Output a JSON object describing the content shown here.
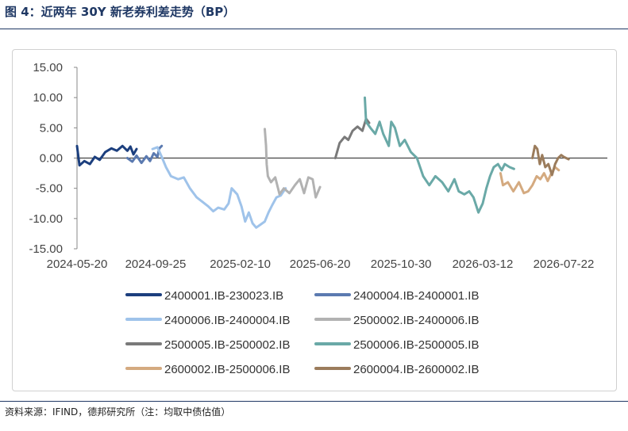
{
  "title": "图 4：近两年 30Y 新老券利差走势（BP）",
  "source": "资料来源：IFIND，德邦研究所（注：均取中债估值）",
  "chart_data": {
    "type": "line",
    "title": "",
    "xlabel": "",
    "ylabel": "",
    "ylim": [
      -15,
      15
    ],
    "y_ticks": [
      "15.00",
      "10.00",
      "5.00",
      "0.00",
      "-5.00",
      "-10.00",
      "-15.00"
    ],
    "x_ticks": [
      "2024-05-20",
      "2024-09-25",
      "2025-02-10",
      "2025-06-20",
      "2025-10-30",
      "2026-03-12",
      "2026-07-22"
    ],
    "grid": false,
    "legend_position": "bottom",
    "series": [
      {
        "name": "2400001.IB-230023.IB",
        "color": "#1c3f7e",
        "points": [
          [
            "2024-05-20",
            2.0
          ],
          [
            "2024-05-24",
            -1.2
          ],
          [
            "2024-06-01",
            -0.5
          ],
          [
            "2024-06-10",
            -1.0
          ],
          [
            "2024-06-18",
            0.2
          ],
          [
            "2024-06-26",
            -0.3
          ],
          [
            "2024-07-05",
            1.0
          ],
          [
            "2024-07-15",
            1.6
          ],
          [
            "2024-07-24",
            1.2
          ],
          [
            "2024-08-02",
            2.0
          ],
          [
            "2024-08-10",
            1.2
          ],
          [
            "2024-08-15",
            1.9
          ],
          [
            "2024-08-20",
            0.6
          ],
          [
            "2024-08-25",
            1.5
          ]
        ]
      },
      {
        "name": "2400004.IB-2400001.IB",
        "color": "#5b7ab0",
        "points": [
          [
            "2024-08-10",
            0.0
          ],
          [
            "2024-08-18",
            -0.6
          ],
          [
            "2024-08-25",
            0.4
          ],
          [
            "2024-09-02",
            -0.8
          ],
          [
            "2024-09-10",
            0.3
          ],
          [
            "2024-09-16",
            -0.5
          ],
          [
            "2024-09-22",
            0.8
          ],
          [
            "2024-09-28",
            0.2
          ],
          [
            "2024-10-01",
            1.6
          ],
          [
            "2024-10-05",
            2.0
          ]
        ]
      },
      {
        "name": "2400006.IB-2400004.IB",
        "color": "#9fc3ea",
        "points": [
          [
            "2024-09-20",
            1.5
          ],
          [
            "2024-09-28",
            1.8
          ],
          [
            "2024-10-05",
            0.2
          ],
          [
            "2024-10-12",
            -1.5
          ],
          [
            "2024-10-20",
            -3.0
          ],
          [
            "2024-11-01",
            -3.5
          ],
          [
            "2024-11-10",
            -3.2
          ],
          [
            "2024-11-20",
            -5.0
          ],
          [
            "2024-12-01",
            -6.5
          ],
          [
            "2024-12-10",
            -7.2
          ],
          [
            "2024-12-20",
            -8.0
          ],
          [
            "2024-12-28",
            -8.8
          ],
          [
            "2025-01-05",
            -8.2
          ],
          [
            "2025-01-15",
            -8.5
          ],
          [
            "2025-01-22",
            -7.5
          ],
          [
            "2025-01-27",
            -5.0
          ],
          [
            "2025-02-05",
            -6.0
          ],
          [
            "2025-02-12",
            -8.0
          ],
          [
            "2025-02-18",
            -10.5
          ],
          [
            "2025-02-24",
            -9.0
          ],
          [
            "2025-03-02",
            -10.8
          ],
          [
            "2025-03-08",
            -11.5
          ],
          [
            "2025-03-15",
            -11.0
          ],
          [
            "2025-03-22",
            -10.5
          ],
          [
            "2025-03-28",
            -9.0
          ],
          [
            "2025-04-03",
            -7.8
          ],
          [
            "2025-04-10",
            -6.5
          ],
          [
            "2025-04-17",
            -6.2
          ],
          [
            "2025-04-25",
            -5.0
          ]
        ]
      },
      {
        "name": "2500002.IB-2400006.IB",
        "color": "#b2b2b2",
        "points": [
          [
            "2025-03-22",
            4.8
          ],
          [
            "2025-03-24",
            2.0
          ],
          [
            "2025-03-25",
            -1.0
          ],
          [
            "2025-03-27",
            -3.0
          ],
          [
            "2025-04-01",
            -4.0
          ],
          [
            "2025-04-08",
            -3.2
          ],
          [
            "2025-04-15",
            -6.0
          ],
          [
            "2025-04-22",
            -5.0
          ],
          [
            "2025-05-01",
            -5.8
          ],
          [
            "2025-05-10",
            -4.5
          ],
          [
            "2025-05-18",
            -3.5
          ],
          [
            "2025-05-25",
            -5.8
          ],
          [
            "2025-06-01",
            -3.2
          ],
          [
            "2025-06-08",
            -3.5
          ],
          [
            "2025-06-13",
            -6.5
          ],
          [
            "2025-06-20",
            -4.8
          ]
        ]
      },
      {
        "name": "2500005.IB-2500002.IB",
        "color": "#7a7a7a",
        "points": [
          [
            "2025-07-15",
            0.0
          ],
          [
            "2025-07-22",
            2.5
          ],
          [
            "2025-07-30",
            3.5
          ],
          [
            "2025-08-05",
            3.0
          ],
          [
            "2025-08-12",
            4.5
          ],
          [
            "2025-08-20",
            5.2
          ],
          [
            "2025-08-28",
            4.5
          ],
          [
            "2025-09-03",
            6.5
          ],
          [
            "2025-09-08",
            5.8
          ]
        ]
      },
      {
        "name": "2500006.IB-2500005.IB",
        "color": "#6aa9a7",
        "points": [
          [
            "2025-09-01",
            10.0
          ],
          [
            "2025-09-03",
            6.0
          ],
          [
            "2025-09-10",
            5.0
          ],
          [
            "2025-09-18",
            4.0
          ],
          [
            "2025-09-25",
            6.0
          ],
          [
            "2025-10-01",
            4.0
          ],
          [
            "2025-10-10",
            2.0
          ],
          [
            "2025-10-14",
            6.0
          ],
          [
            "2025-10-20",
            5.0
          ],
          [
            "2025-10-28",
            2.0
          ],
          [
            "2025-11-05",
            3.0
          ],
          [
            "2025-11-15",
            1.0
          ],
          [
            "2025-11-25",
            0.0
          ],
          [
            "2025-12-05",
            -3.0
          ],
          [
            "2025-12-15",
            -4.5
          ],
          [
            "2025-12-25",
            -3.0
          ],
          [
            "2026-01-05",
            -4.0
          ],
          [
            "2026-01-15",
            -5.5
          ],
          [
            "2026-01-25",
            -3.5
          ],
          [
            "2026-02-01",
            -5.5
          ],
          [
            "2026-02-10",
            -6.0
          ],
          [
            "2026-02-18",
            -5.5
          ],
          [
            "2026-02-25",
            -6.5
          ],
          [
            "2026-03-05",
            -9.0
          ],
          [
            "2026-03-12",
            -7.5
          ],
          [
            "2026-03-18",
            -5.0
          ],
          [
            "2026-03-24",
            -3.0
          ],
          [
            "2026-03-30",
            -1.5
          ],
          [
            "2026-04-06",
            -1.0
          ],
          [
            "2026-04-12",
            -2.0
          ],
          [
            "2026-04-17",
            -1.0
          ],
          [
            "2026-04-25",
            -1.5
          ],
          [
            "2026-05-02",
            -1.8
          ]
        ]
      },
      {
        "name": "2600002.IB-2500006.IB",
        "color": "#d4aa80",
        "points": [
          [
            "2026-04-10",
            -2.5
          ],
          [
            "2026-04-14",
            -4.5
          ],
          [
            "2026-04-22",
            -4.0
          ],
          [
            "2026-05-01",
            -5.5
          ],
          [
            "2026-05-10",
            -4.0
          ],
          [
            "2026-05-18",
            -5.8
          ],
          [
            "2026-05-25",
            -5.5
          ],
          [
            "2026-06-01",
            -4.5
          ],
          [
            "2026-06-08",
            -3.0
          ],
          [
            "2026-06-14",
            -3.5
          ],
          [
            "2026-06-20",
            -2.5
          ],
          [
            "2026-06-26",
            -3.8
          ],
          [
            "2026-07-02",
            -2.5
          ],
          [
            "2026-07-08",
            -1.5
          ],
          [
            "2026-07-14",
            -2.0
          ]
        ]
      },
      {
        "name": "2600004.IB-2600002.IB",
        "color": "#9b7c5c",
        "points": [
          [
            "2026-06-01",
            0.0
          ],
          [
            "2026-06-05",
            2.0
          ],
          [
            "2026-06-09",
            1.5
          ],
          [
            "2026-06-13",
            -1.0
          ],
          [
            "2026-06-17",
            0.5
          ],
          [
            "2026-06-22",
            -1.5
          ],
          [
            "2026-06-27",
            -1.0
          ],
          [
            "2026-07-03",
            -2.8
          ],
          [
            "2026-07-08",
            -1.0
          ],
          [
            "2026-07-13",
            0.0
          ],
          [
            "2026-07-18",
            0.5
          ],
          [
            "2026-07-22",
            0.2
          ],
          [
            "2026-07-30",
            -0.2
          ]
        ]
      }
    ]
  }
}
